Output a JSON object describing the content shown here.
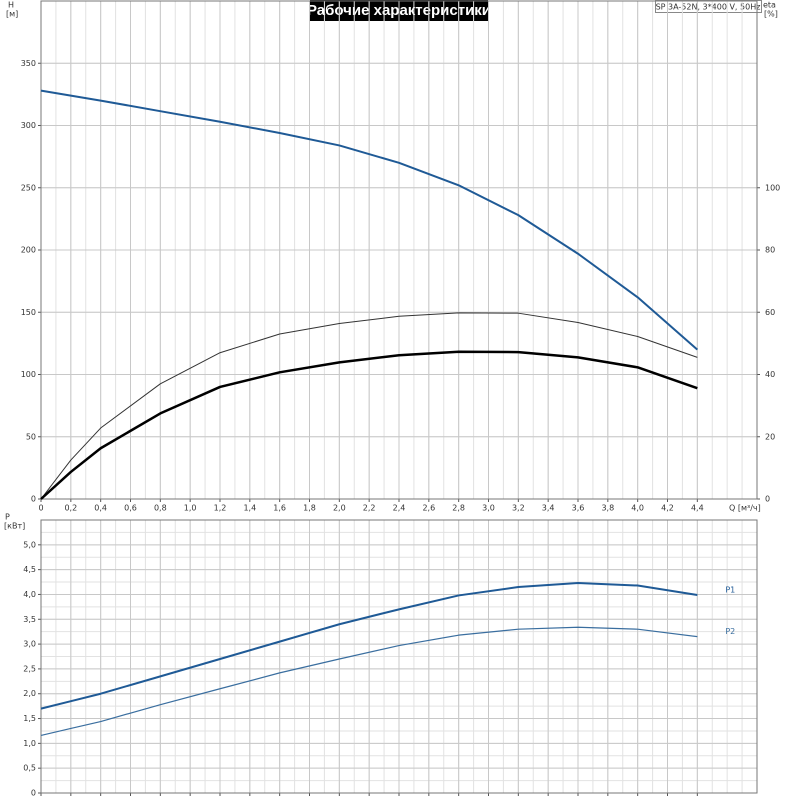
{
  "chart_data": [
    {
      "type": "line",
      "title": "Рабочие характеристики",
      "subtitle": "SP 3A-52N, 3*400 V, 50Hz",
      "y_label": "H",
      "y_unit": "[м]",
      "y2_label": "eta",
      "y2_unit": "[%]",
      "x_label": "Q [м³/ч]",
      "x": [
        0,
        0.2,
        0.4,
        0.8,
        1.2,
        1.6,
        2.0,
        2.4,
        2.8,
        3.2,
        3.6,
        4.0,
        4.4
      ],
      "series": [
        {
          "color": "#1f5a96",
          "values": [
            328,
            324,
            320,
            311.5,
            303,
            294,
            284,
            270,
            252,
            228,
            197,
            162,
            120
          ]
        },
        {
          "color": "#333333",
          "axis": "y2",
          "values": [
            0,
            12.5,
            22.8,
            37,
            47,
            53,
            56.4,
            58.7,
            59.8,
            59.7,
            56.7,
            52.2,
            45.5
          ]
        },
        {
          "color": "#000000",
          "axis": "y2",
          "values": [
            0,
            8.7,
            16.3,
            27.5,
            36,
            40.7,
            43.9,
            46.2,
            47.3,
            47.2,
            45.5,
            42.3,
            35.6
          ]
        }
      ],
      "xlim": [
        0,
        4.8
      ],
      "xticks": [
        0,
        {
          "value": 0.2,
          "label": "0,2"
        },
        {
          "value": 0.4,
          "label": "0,4"
        },
        {
          "value": 0.6,
          "label": "0,6"
        },
        {
          "value": 0.8,
          "label": "0,8"
        },
        {
          "value": 1.0,
          "label": "1,0"
        },
        {
          "value": 1.2,
          "label": "1,2"
        },
        {
          "value": 1.4,
          "label": "1,4"
        },
        {
          "value": 1.6,
          "label": "1,6"
        },
        {
          "value": 1.8,
          "label": "1,8"
        },
        {
          "value": 2.0,
          "label": "2,0"
        },
        {
          "value": 2.2,
          "label": "2,2"
        },
        {
          "value": 2.4,
          "label": "2,4"
        },
        {
          "value": 2.6,
          "label": "2,6"
        },
        {
          "value": 2.8,
          "label": "2,8"
        },
        {
          "value": 3.0,
          "label": "3,0"
        },
        {
          "value": 3.2,
          "label": "3,2"
        },
        {
          "value": 3.4,
          "label": "3,4"
        },
        {
          "value": 3.6,
          "label": "3,6"
        },
        {
          "value": 3.8,
          "label": "3,8"
        },
        {
          "value": 4.0,
          "label": "4,0"
        },
        {
          "value": 4.2,
          "label": "4,2"
        },
        {
          "value": 4.4,
          "label": "4,4"
        }
      ],
      "ylim": [
        0,
        400
      ],
      "yticks": [
        0,
        50,
        100,
        150,
        200,
        250,
        300,
        350
      ],
      "y2lim": [
        0,
        160
      ],
      "y2ticks": [
        0,
        20,
        40,
        60,
        80,
        100
      ],
      "grid": true
    },
    {
      "type": "line",
      "y_label": "P",
      "y_unit": "[кВт]",
      "x": [
        0,
        0.2,
        0.4,
        0.8,
        1.2,
        1.6,
        2.0,
        2.4,
        2.8,
        3.2,
        3.6,
        4.0,
        4.4
      ],
      "series": [
        {
          "name": "P1",
          "color": "#1f5a96",
          "values": [
            1.7,
            1.85,
            2.0,
            2.35,
            2.7,
            3.05,
            3.4,
            3.7,
            3.98,
            4.15,
            4.23,
            4.18,
            3.99
          ]
        },
        {
          "name": "P2",
          "color": "#3a6e9f",
          "values": [
            1.16,
            1.3,
            1.44,
            1.78,
            2.1,
            2.42,
            2.7,
            2.97,
            3.18,
            3.3,
            3.34,
            3.3,
            3.15
          ]
        }
      ],
      "xlim": [
        0,
        4.8
      ],
      "ylim": [
        0,
        5.5
      ],
      "yticks": [
        0,
        {
          "value": 0.5,
          "label": "0,5"
        },
        {
          "value": 1.0,
          "label": "1,0"
        },
        {
          "value": 1.5,
          "label": "1,5"
        },
        {
          "value": 2.0,
          "label": "2,0"
        },
        {
          "value": 2.5,
          "label": "2,5"
        },
        {
          "value": 3.0,
          "label": "3,0"
        },
        {
          "value": 3.5,
          "label": "3,5"
        },
        {
          "value": 4.0,
          "label": "4,0"
        },
        {
          "value": 4.5,
          "label": "4,5"
        },
        {
          "value": 5.0,
          "label": "5,0"
        }
      ],
      "grid": true
    }
  ]
}
